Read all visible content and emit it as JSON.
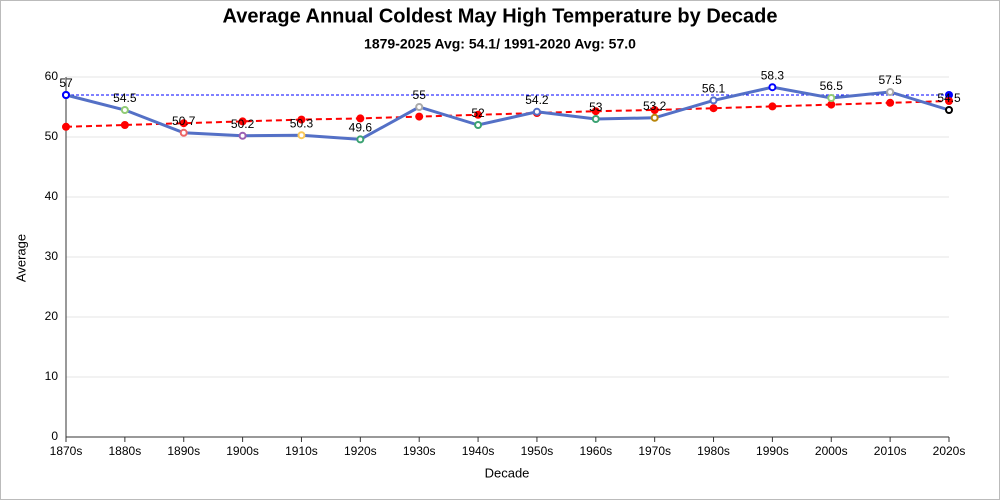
{
  "chart_data": {
    "type": "line",
    "title": "Average Annual Coldest May High Temperature by Decade",
    "subtitle": "1879-2025 Avg: 54.1/ 1991-2020 Avg: 57.0",
    "x_label": "Decade",
    "y_label": "Average",
    "categories": [
      "1870s",
      "1880s",
      "1890s",
      "1900s",
      "1910s",
      "1920s",
      "1930s",
      "1940s",
      "1950s",
      "1960s",
      "1970s",
      "1980s",
      "1990s",
      "2000s",
      "2010s",
      "2020s"
    ],
    "series": [
      {
        "color": "#5470c6",
        "values": [
          57,
          54.5,
          50.7,
          50.2,
          50.3,
          49.6,
          55,
          52,
          54.2,
          53,
          53.2,
          56.1,
          58.3,
          56.5,
          57.5,
          54.5
        ],
        "marker_colors": [
          "#0000ff",
          "#91cc75",
          "#ee6666",
          "#9a60b4",
          "#fac858",
          "#3ba272",
          "#aaaaaa",
          "#3ba272",
          "#5470c6",
          "#3ba272",
          "#b8860b",
          "#5470c6",
          "#0000ff",
          "#91cc75",
          "#aaaaaa",
          "#000000"
        ]
      },
      {
        "color": "#ff0000",
        "dashed": true,
        "values": [
          51.7,
          52.0,
          52.3,
          52.6,
          52.9,
          53.1,
          53.4,
          53.7,
          54.0,
          54.3,
          54.5,
          54.8,
          55.1,
          55.4,
          55.7,
          56.0
        ]
      }
    ],
    "reference_line": {
      "value": 57.0,
      "color": "#0000ff"
    },
    "ylim": [
      0,
      60
    ],
    "yticks": [
      0,
      10,
      20,
      30,
      40,
      50,
      60
    ],
    "grid": true
  }
}
